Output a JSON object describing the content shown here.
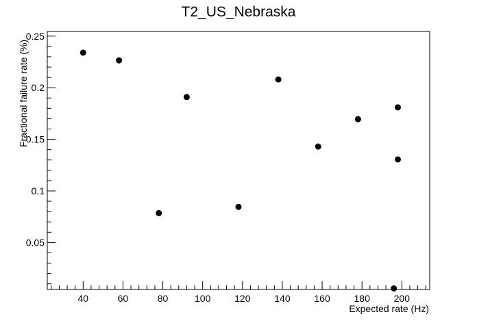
{
  "chart_data": {
    "type": "scatter",
    "title": "T2_US_Nebraska",
    "xlabel": "Expected rate (Hz)",
    "ylabel": "Fractional failure rate (%)",
    "xlim": [
      22,
      214
    ],
    "ylim": [
      0.0045,
      0.2545
    ],
    "x_ticks": [
      40,
      60,
      80,
      100,
      120,
      140,
      160,
      180,
      200
    ],
    "x_tick_labels": [
      "40",
      "60",
      "80",
      "100",
      "120",
      "140",
      "160",
      "180",
      "200"
    ],
    "y_ticks": [
      0.05,
      0.1,
      0.15,
      0.2,
      0.25
    ],
    "y_tick_labels": [
      "0.05",
      "0.1",
      "0.15",
      "0.2",
      "0.25"
    ],
    "grid": false,
    "legend": "none",
    "marker_color": "#000000",
    "points": [
      {
        "x": 40,
        "y": 0.234
      },
      {
        "x": 58,
        "y": 0.2265
      },
      {
        "x": 78,
        "y": 0.0785
      },
      {
        "x": 92,
        "y": 0.191
      },
      {
        "x": 118,
        "y": 0.0845
      },
      {
        "x": 138,
        "y": 0.208
      },
      {
        "x": 158,
        "y": 0.143
      },
      {
        "x": 178,
        "y": 0.1695
      },
      {
        "x": 196,
        "y": 0.0055
      },
      {
        "x": 198,
        "y": 0.181
      },
      {
        "x": 198,
        "y": 0.1305
      }
    ]
  }
}
